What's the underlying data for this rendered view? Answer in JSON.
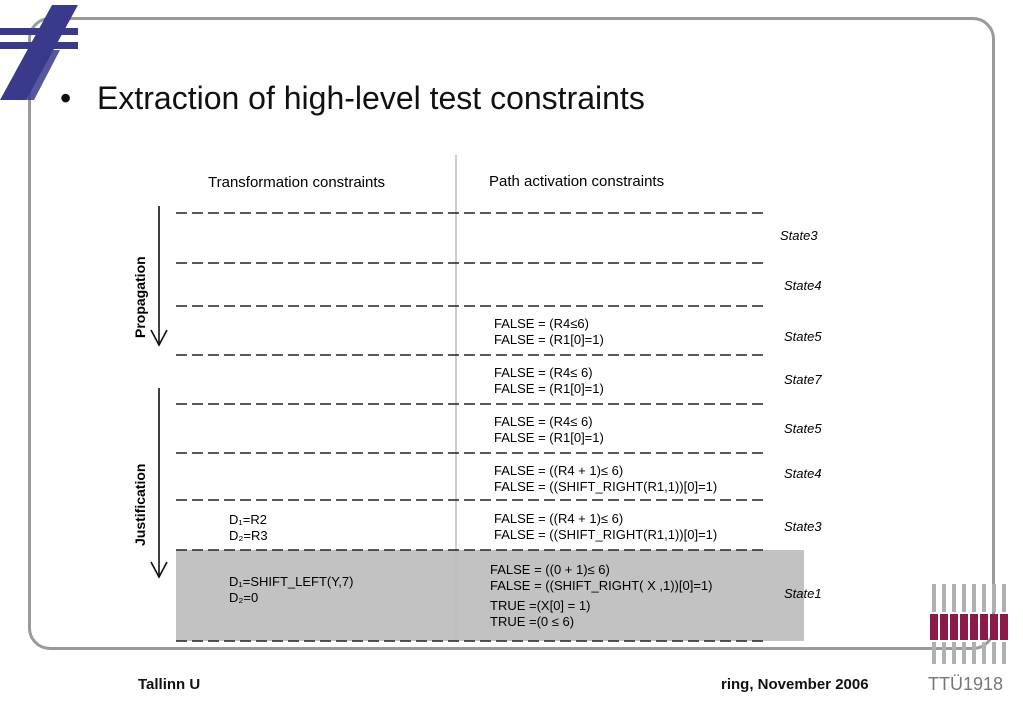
{
  "slide": {
    "bullet": "•",
    "title": "Extraction of high-level test constraints"
  },
  "columns": {
    "left": "Transformation constraints",
    "right": "Path activation constraints"
  },
  "side_labels": {
    "propagation": "Propagation",
    "justification": "Justification"
  },
  "states": [
    "State3",
    "State4",
    "State5",
    "State7",
    "State5",
    "State4",
    "State3",
    "State1"
  ],
  "rows": [
    {
      "right": []
    },
    {
      "right": []
    },
    {
      "right": [
        "FALSE = (R4≤6)",
        "FALSE = (R1[0]=1)"
      ]
    },
    {
      "right": [
        "FALSE = (R4≤ 6)",
        "FALSE = (R1[0]=1)"
      ]
    },
    {
      "right": [
        "FALSE = (R4≤ 6)",
        "FALSE = (R1[0]=1)"
      ]
    },
    {
      "right": [
        "FALSE = ((R4 + 1)≤ 6)",
        "FALSE = ((SHIFT_RIGHT(R1,1))[0]=1)"
      ]
    },
    {
      "left": [
        "D₁=R2",
        "D₂=R3"
      ],
      "right": [
        "FALSE = ((R4 + 1)≤ 6)",
        "FALSE = ((SHIFT_RIGHT(R1,1))[0]=1)"
      ]
    },
    {
      "left": [
        "D₁=SHIFT_LEFT(Y,7)",
        "D₂=0"
      ],
      "right": [
        "FALSE = ((0 + 1)≤ 6)",
        "FALSE = ((SHIFT_RIGHT( X ,1))[0]=1)",
        "TRUE =(X[0] = 1)",
        "TRUE =(0 ≤ 6)"
      ]
    }
  ],
  "footer": {
    "left": "Tallinn U",
    "right": "ring, November 2006"
  },
  "logos": {
    "top_left": "ttu-emblem",
    "bottom_right_text": "TTÜ1918"
  },
  "colors": {
    "frame": "#9a9a9a",
    "highlight": "#c2c2c2",
    "logo_blue": "#3a3a8c",
    "ttu_maroon": "#8b1a4a"
  }
}
